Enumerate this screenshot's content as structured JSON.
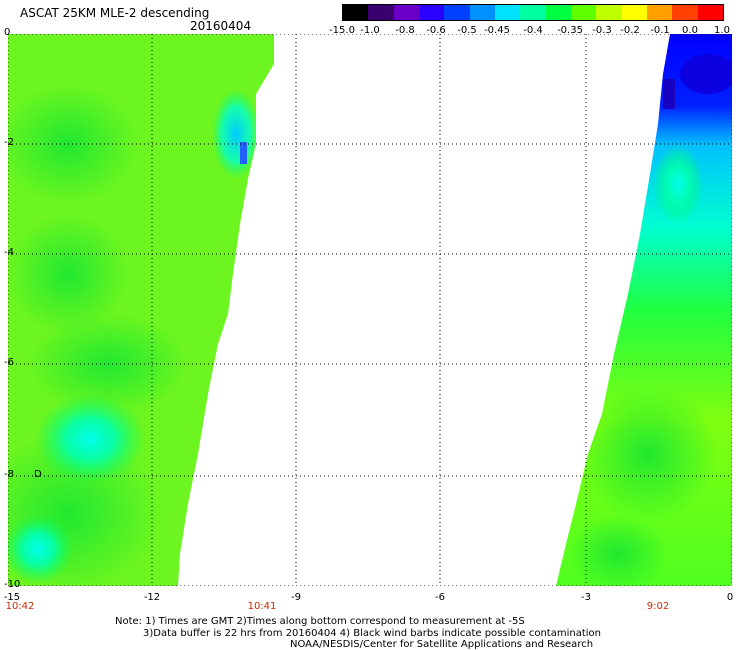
{
  "header": {
    "title": "ASCAT 25KM MLE-2 descending",
    "date": "20160404"
  },
  "colorbar": {
    "labels": [
      "-15.0",
      "-1.0",
      "-0.8",
      "-0.6",
      "-0.5",
      "-0.45",
      "-0.4",
      "-0.35",
      "-0.3",
      "-0.2",
      "-0.1",
      "0.0",
      "1.0"
    ],
    "colors": [
      "#000000",
      "#3a0070",
      "#6a00c8",
      "#2a00ff",
      "#0040ff",
      "#0090ff",
      "#00e0ff",
      "#00ffa0",
      "#00ff40",
      "#60ff00",
      "#c0ff00",
      "#ffff00",
      "#ffa000",
      "#ff4000",
      "#ff0000"
    ]
  },
  "map": {
    "lat_labels": [
      "0",
      "-2",
      "-4",
      "-6",
      "-8",
      "-10"
    ],
    "lon_labels": [
      "-15",
      "-12",
      "-9",
      "-6",
      "-3",
      "0"
    ],
    "time_labels": [
      "10:42",
      "10:41",
      "9:02"
    ],
    "barb_label": "D"
  },
  "footer": {
    "line1": "Note: 1) Times are GMT 2)Times along bottom correspond to measurement at -5S",
    "line2": "3)Data buffer is 22 hrs from 20160404 4) Black wind barbs indicate possible contamination",
    "line3": "NOAA/NESDIS/Center for Satellite Applications and Research"
  }
}
